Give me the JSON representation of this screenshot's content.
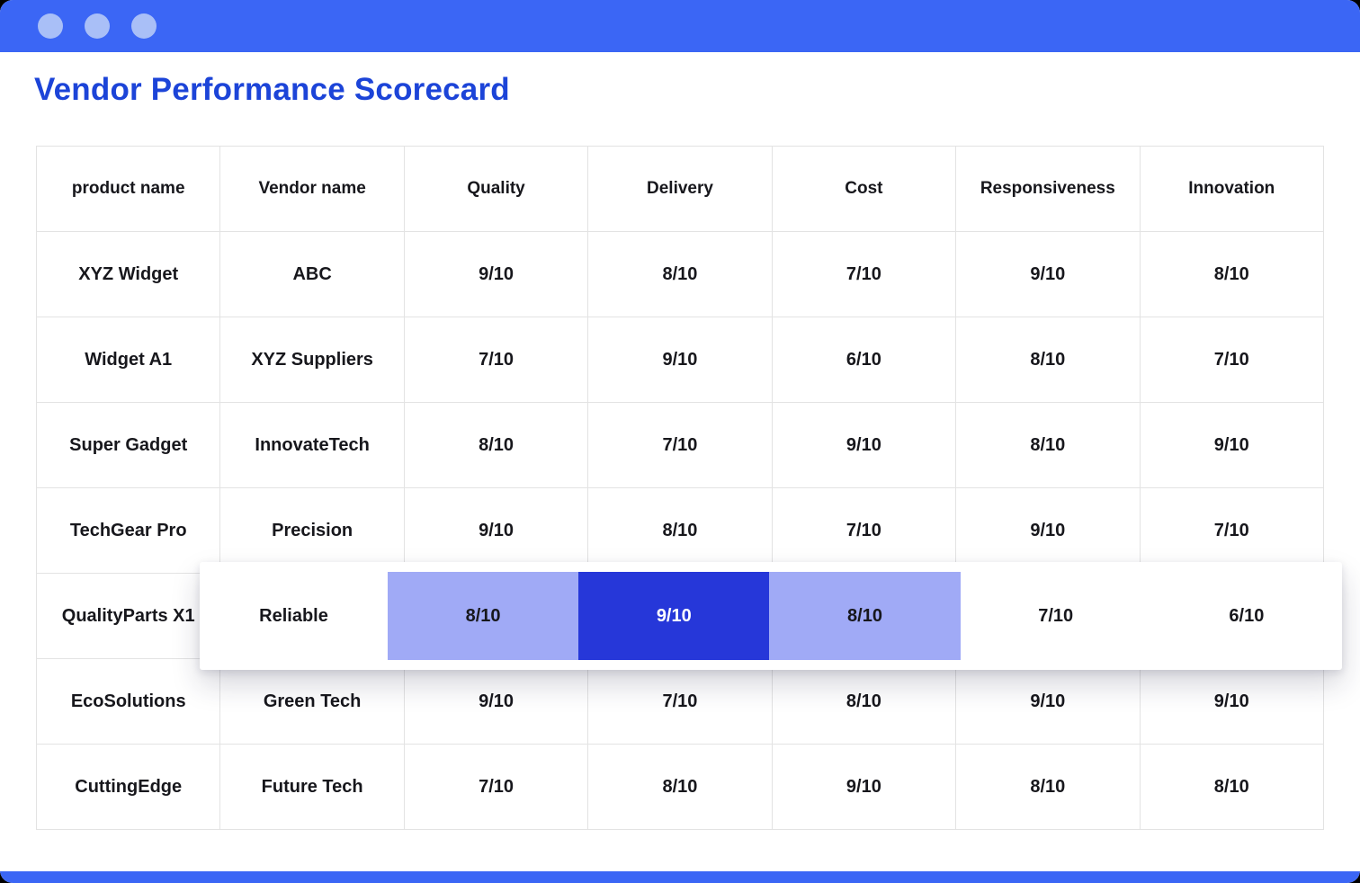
{
  "window": {
    "titlebar_color": "#3B66F5",
    "control_dot_color": "#A9BFF7",
    "control_dots": 3,
    "bottombar_color": "#3B66F5"
  },
  "page": {
    "title": "Vendor Performance Scorecard",
    "title_color": "#1C44D8"
  },
  "scorecard": {
    "columns": [
      "product name",
      "Vendor name",
      "Quality",
      "Delivery",
      "Cost",
      "Responsiveness",
      "Innovation"
    ],
    "colors": {
      "high_bg": "#2637D9",
      "high_text": "#FFFFFF",
      "mid_bg": "#A0AAF6",
      "low_bg": "#FFFFFF",
      "text": "#17171C",
      "border": "#E3E3E3"
    },
    "rows": [
      {
        "product": "XYZ Widget",
        "vendor": "ABC",
        "scores": [
          {
            "text": "9/10",
            "tone": "high"
          },
          {
            "text": "8/10",
            "tone": "mid"
          },
          {
            "text": "7/10",
            "tone": "low"
          },
          {
            "text": "9/10",
            "tone": "high"
          },
          {
            "text": "8/10",
            "tone": "mid"
          }
        ]
      },
      {
        "product": "Widget A1",
        "vendor": "XYZ Suppliers",
        "scores": [
          {
            "text": "7/10",
            "tone": "low"
          },
          {
            "text": "9/10",
            "tone": "high"
          },
          {
            "text": "6/10",
            "tone": "low"
          },
          {
            "text": "8/10",
            "tone": "mid"
          },
          {
            "text": "7/10",
            "tone": "low"
          }
        ]
      },
      {
        "product": "Super Gadget",
        "vendor": "InnovateTech",
        "scores": [
          {
            "text": "8/10",
            "tone": "mid"
          },
          {
            "text": "7/10",
            "tone": "low"
          },
          {
            "text": "9/10",
            "tone": "high"
          },
          {
            "text": "8/10",
            "tone": "mid"
          },
          {
            "text": "9/10",
            "tone": "high"
          }
        ]
      },
      {
        "product": "TechGear Pro",
        "vendor": "Precision",
        "scores": [
          {
            "text": "9/10",
            "tone": "high"
          },
          {
            "text": "8/10",
            "tone": "mid"
          },
          {
            "text": "7/10",
            "tone": "low"
          },
          {
            "text": "9/10",
            "tone": "high"
          },
          {
            "text": "7/10",
            "tone": "low"
          }
        ]
      },
      {
        "product": "QualityParts X1",
        "vendor": "",
        "scores": [],
        "covered_by_drag_card": true
      },
      {
        "product": "EcoSolutions",
        "vendor": "Green Tech",
        "scores": [
          {
            "text": "9/10",
            "tone": "high"
          },
          {
            "text": "7/10",
            "tone": "low"
          },
          {
            "text": "8/10",
            "tone": "mid"
          },
          {
            "text": "9/10",
            "tone": "high"
          },
          {
            "text": "9/10",
            "tone": "high"
          }
        ]
      },
      {
        "product": "CuttingEdge",
        "vendor": "Future Tech",
        "scores": [
          {
            "text": "7/10",
            "tone": "low"
          },
          {
            "text": "8/10",
            "tone": "mid"
          },
          {
            "text": "9/10",
            "tone": "high"
          },
          {
            "text": "8/10",
            "tone": "mid"
          },
          {
            "text": "8/10",
            "tone": "mid"
          }
        ]
      }
    ],
    "drag_row": {
      "vendor": "Reliable",
      "scores": [
        {
          "text": "8/10",
          "tone": "mid"
        },
        {
          "text": "9/10",
          "tone": "high"
        },
        {
          "text": "8/10",
          "tone": "mid"
        },
        {
          "text": "7/10",
          "tone": "low"
        },
        {
          "text": "6/10",
          "tone": "low"
        }
      ]
    }
  }
}
